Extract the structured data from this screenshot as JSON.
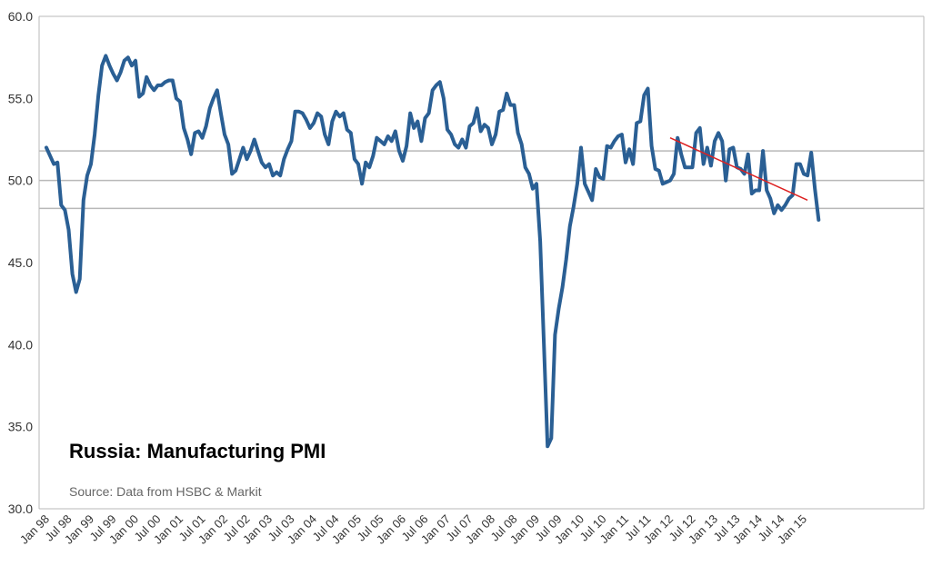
{
  "chart_data": {
    "type": "line",
    "title": "Russia: Manufacturing PMI",
    "source": "Source: Data from HSBC & Markit",
    "xlabel": "",
    "ylabel": "",
    "ylim": [
      30.0,
      60.0
    ],
    "yticks": [
      "30.0",
      "35.0",
      "40.0",
      "45.0",
      "50.0",
      "55.0",
      "60.0"
    ],
    "xtick_labels": [
      "Jan 98",
      "Jul 98",
      "Jan 99",
      "Jul 99",
      "Jan 00",
      "Jul 00",
      "Jan 01",
      "Jul 01",
      "Jan 02",
      "Jul 02",
      "Jan 03",
      "Jul 03",
      "Jan 04",
      "Jul 04",
      "Jan 05",
      "Jul 05",
      "Jan 06",
      "Jul 06",
      "Jan 07",
      "Jul 07",
      "Jan 08",
      "Jul 08",
      "Jan 09",
      "Jul 09",
      "Jan 10",
      "Jul 10",
      "Jan 11",
      "Jul 11",
      "Jan 12",
      "Jul 12",
      "Jan 13",
      "Jul 13",
      "Jan 14",
      "Jul 14",
      "Jan 15"
    ],
    "reference_lines": [
      51.8,
      50.0,
      48.3
    ],
    "colors": {
      "series": "#2a5f94",
      "trend": "#dd2222",
      "grid": "#b8b8b8"
    },
    "series": [
      {
        "name": "",
        "start": "Jan 98",
        "values": [
          52.0,
          51.5,
          51.0,
          51.1,
          48.5,
          48.2,
          47.0,
          44.3,
          43.2,
          44.0,
          48.8,
          50.3,
          51.0,
          52.8,
          55.2,
          57.0,
          57.6,
          57.0,
          56.5,
          56.1,
          56.6,
          57.3,
          57.5,
          57.0,
          57.3,
          55.1,
          55.3,
          56.3,
          55.8,
          55.5,
          55.8,
          55.8,
          56.0,
          56.1,
          56.1,
          55.0,
          54.8,
          53.2,
          52.5,
          51.6,
          52.9,
          53.0,
          52.6,
          53.3,
          54.4,
          55.0,
          55.5,
          54.1,
          52.8,
          52.2,
          50.4,
          50.6,
          51.3,
          52.0,
          51.3,
          51.8,
          52.5,
          51.8,
          51.1,
          50.8,
          51.0,
          50.3,
          50.5,
          50.3,
          51.3,
          51.9,
          52.4,
          54.2,
          54.2,
          54.1,
          53.7,
          53.2,
          53.5,
          54.1,
          53.9,
          52.8,
          52.2,
          53.6,
          54.2,
          53.9,
          54.1,
          53.1,
          52.9,
          51.3,
          51.0,
          49.8,
          51.1,
          50.8,
          51.5,
          52.6,
          52.4,
          52.2,
          52.7,
          52.4,
          53.0,
          51.8,
          51.2,
          52.1,
          54.1,
          53.2,
          53.6,
          52.4,
          53.8,
          54.1,
          55.5,
          55.8,
          56.0,
          55.0,
          53.1,
          52.8,
          52.2,
          52.0,
          52.5,
          52.0,
          53.3,
          53.5,
          54.4,
          53.0,
          53.4,
          53.2,
          52.2,
          52.8,
          54.2,
          54.3,
          55.3,
          54.6,
          54.6,
          52.9,
          52.2,
          50.8,
          50.4,
          49.5,
          49.8,
          46.3,
          40.0,
          33.8,
          34.3,
          40.6,
          42.2,
          43.5,
          45.2,
          47.2,
          48.4,
          49.8,
          52.0,
          49.8,
          49.3,
          48.8,
          50.7,
          50.2,
          50.1,
          52.1,
          52.0,
          52.4,
          52.7,
          52.8,
          51.1,
          51.9,
          51.0,
          53.5,
          53.6,
          55.2,
          55.6,
          52.1,
          50.7,
          50.6,
          49.8,
          49.9,
          50.0,
          50.4,
          52.6,
          51.6,
          50.8,
          50.8,
          50.8,
          52.9,
          53.2,
          51.0,
          52.0,
          50.9,
          52.4,
          52.9,
          52.4,
          50.0,
          51.9,
          52.0,
          50.8,
          50.7,
          50.4,
          51.6,
          49.2,
          49.4,
          49.4,
          51.8,
          49.4,
          48.9,
          48.0,
          48.5,
          48.2,
          48.5,
          48.9,
          49.1,
          51.0,
          51.0,
          50.4,
          50.3,
          51.7,
          49.5,
          47.6
        ]
      }
    ],
    "trend_line": {
      "from": [
        "Jan 12",
        52.6
      ],
      "to": [
        "Feb 15",
        48.8
      ]
    }
  }
}
